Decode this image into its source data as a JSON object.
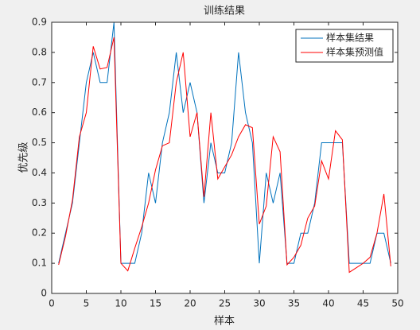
{
  "chart_data": {
    "type": "line",
    "title": "训练结果",
    "xlabel": "样本",
    "ylabel": "优先级",
    "x": [
      1,
      2,
      3,
      4,
      5,
      6,
      7,
      8,
      9,
      10,
      11,
      12,
      13,
      14,
      15,
      16,
      17,
      18,
      19,
      20,
      21,
      22,
      23,
      24,
      25,
      26,
      27,
      28,
      29,
      30,
      31,
      32,
      33,
      34,
      35,
      36,
      37,
      38,
      39,
      40,
      41,
      42,
      43,
      44,
      45,
      46,
      47,
      48,
      49
    ],
    "series": [
      {
        "name": "样本集结果",
        "color": "#0072bd",
        "values": [
          0.1,
          0.2,
          0.3,
          0.5,
          0.7,
          0.8,
          0.7,
          0.7,
          0.9,
          0.1,
          0.1,
          0.1,
          0.2,
          0.4,
          0.3,
          0.5,
          0.6,
          0.8,
          0.6,
          0.7,
          0.6,
          0.3,
          0.5,
          0.4,
          0.4,
          0.5,
          0.8,
          0.6,
          0.5,
          0.1,
          0.4,
          0.3,
          0.4,
          0.1,
          0.1,
          0.2,
          0.2,
          0.3,
          0.5,
          0.5,
          0.5,
          0.5,
          0.1,
          0.1,
          0.1,
          0.1,
          0.2,
          0.2,
          0.1
        ]
      },
      {
        "name": "样本集预测值",
        "color": "#ff0000",
        "values": [
          0.095,
          0.19,
          0.31,
          0.52,
          0.6,
          0.82,
          0.745,
          0.75,
          0.85,
          0.1,
          0.075,
          0.15,
          0.22,
          0.3,
          0.41,
          0.49,
          0.5,
          0.7,
          0.8,
          0.52,
          0.6,
          0.32,
          0.6,
          0.38,
          0.42,
          0.46,
          0.52,
          0.56,
          0.55,
          0.23,
          0.29,
          0.52,
          0.47,
          0.095,
          0.12,
          0.16,
          0.25,
          0.29,
          0.44,
          0.38,
          0.54,
          0.51,
          0.07,
          0.085,
          0.1,
          0.12,
          0.2,
          0.33,
          0.09
        ]
      }
    ],
    "xlim": [
      0,
      50
    ],
    "xticks": [
      0,
      5,
      10,
      15,
      20,
      25,
      30,
      35,
      40,
      45,
      50
    ],
    "ylim": [
      0,
      0.9
    ],
    "yticks": [
      0,
      0.1,
      0.2,
      0.3,
      0.4,
      0.5,
      0.6,
      0.7,
      0.8,
      0.9
    ],
    "legend": "northeast"
  }
}
